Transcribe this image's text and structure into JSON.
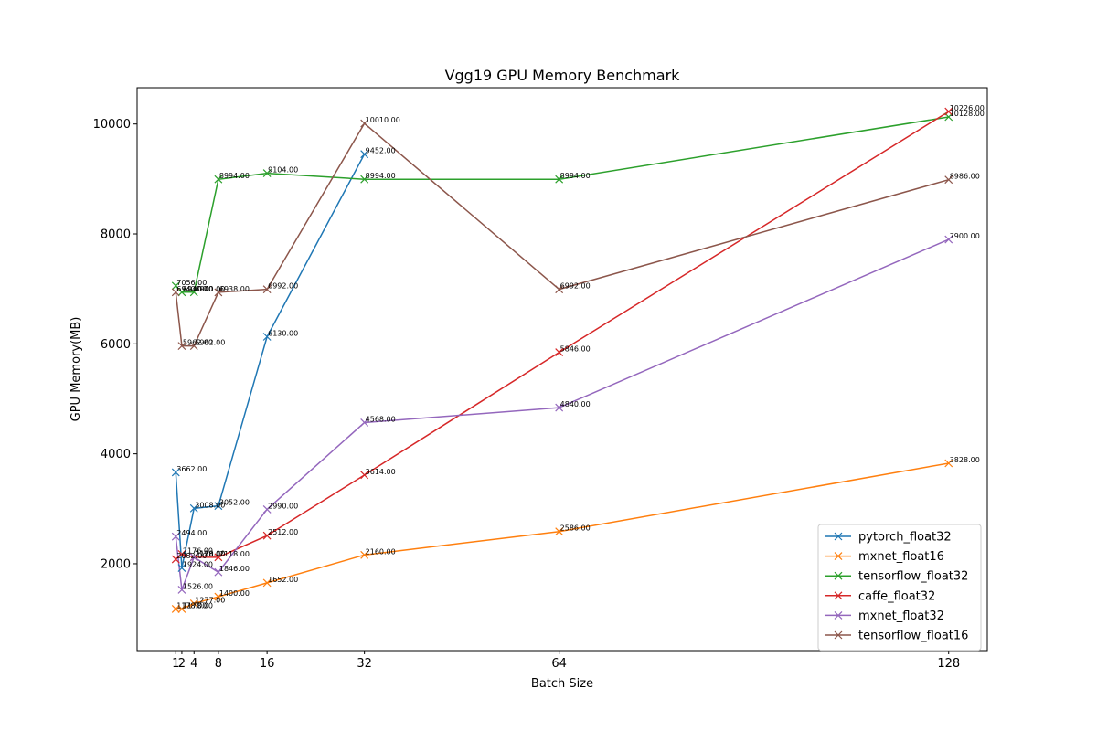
{
  "chart_data": {
    "type": "line",
    "title": "Vgg19 GPU Memory Benchmark",
    "xlabel": "Batch Size",
    "ylabel": "GPU Memory(MB)",
    "x": [
      1,
      2,
      4,
      8,
      16,
      32,
      64,
      128
    ],
    "x_ticks": [
      1,
      2,
      4,
      8,
      16,
      32,
      64,
      128
    ],
    "y_ticks": [
      2000,
      4000,
      6000,
      8000,
      10000
    ],
    "xlim": [
      -5.35,
      134.35
    ],
    "ylim": [
      420,
      10660
    ],
    "grid": false,
    "legend_position": "lower-right",
    "marker": "x",
    "series": [
      {
        "name": "pytorch_float32",
        "color": "#1f77b4",
        "values": [
          3662,
          1924,
          3008,
          3052,
          6130,
          9452,
          null,
          null
        ]
      },
      {
        "name": "mxnet_float16",
        "color": "#ff7f0e",
        "values": [
          1178,
          1178,
          1277,
          1400,
          1652,
          2160,
          2586,
          3828
        ]
      },
      {
        "name": "tensorflow_float32",
        "color": "#2ca02c",
        "values": [
          7056,
          6940,
          6940,
          8994,
          9104,
          8994,
          8994,
          10128
        ]
      },
      {
        "name": "caffe_float32",
        "color": "#d62728",
        "values": [
          2082,
          2176,
          2120,
          2118,
          2512,
          3614,
          5846,
          10226
        ]
      },
      {
        "name": "mxnet_float32",
        "color": "#9467bd",
        "values": [
          2494,
          1526,
          2118,
          1846,
          2990,
          4568,
          4840,
          7900
        ]
      },
      {
        "name": "tensorflow_float16",
        "color": "#8c564b",
        "values": [
          6940,
          5962,
          5962,
          6938,
          6992,
          10010,
          6992,
          8986
        ]
      }
    ],
    "data_labels": [
      {
        "series": 0,
        "x": 1,
        "y": 3662,
        "text": "3662.00"
      },
      {
        "series": 0,
        "x": 2,
        "y": 1924,
        "text": "1924.00"
      },
      {
        "series": 0,
        "x": 4,
        "y": 3008,
        "text": "3008.00"
      },
      {
        "series": 0,
        "x": 8,
        "y": 3052,
        "text": "3052.00"
      },
      {
        "series": 0,
        "x": 16,
        "y": 6130,
        "text": "6130.00"
      },
      {
        "series": 0,
        "x": 32,
        "y": 9452,
        "text": "9452.00"
      },
      {
        "series": 1,
        "x": 1,
        "y": 1178,
        "text": "1178.00"
      },
      {
        "series": 1,
        "x": 2,
        "y": 1178,
        "text": "1178.00"
      },
      {
        "series": 1,
        "x": 4,
        "y": 1277,
        "text": "1277.00"
      },
      {
        "series": 1,
        "x": 8,
        "y": 1400,
        "text": "1400.00"
      },
      {
        "series": 1,
        "x": 16,
        "y": 1652,
        "text": "1652.00"
      },
      {
        "series": 1,
        "x": 32,
        "y": 2160,
        "text": "2160.00"
      },
      {
        "series": 1,
        "x": 64,
        "y": 2586,
        "text": "2586.00"
      },
      {
        "series": 1,
        "x": 128,
        "y": 3828,
        "text": "3828.00"
      },
      {
        "series": 2,
        "x": 1,
        "y": 7056,
        "text": "7056.00"
      },
      {
        "series": 2,
        "x": 2,
        "y": 6940,
        "text": "6940.00"
      },
      {
        "series": 2,
        "x": 4,
        "y": 6940,
        "text": "6940.00"
      },
      {
        "series": 2,
        "x": 8,
        "y": 8994,
        "text": "8994.00"
      },
      {
        "series": 2,
        "x": 16,
        "y": 9104,
        "text": "9104.00"
      },
      {
        "series": 2,
        "x": 32,
        "y": 8994,
        "text": "8994.00"
      },
      {
        "series": 2,
        "x": 64,
        "y": 8994,
        "text": "8994.00"
      },
      {
        "series": 2,
        "x": 128,
        "y": 10128,
        "text": "10128.00"
      },
      {
        "series": 3,
        "x": 1,
        "y": 2082,
        "text": "2082.00"
      },
      {
        "series": 3,
        "x": 2,
        "y": 2176,
        "text": "2176.00"
      },
      {
        "series": 3,
        "x": 4,
        "y": 2120,
        "text": "2120.00"
      },
      {
        "series": 3,
        "x": 8,
        "y": 2118,
        "text": "2118.00"
      },
      {
        "series": 3,
        "x": 16,
        "y": 2512,
        "text": "2512.00"
      },
      {
        "series": 3,
        "x": 32,
        "y": 3614,
        "text": "3614.00"
      },
      {
        "series": 3,
        "x": 64,
        "y": 5846,
        "text": "5846.00"
      },
      {
        "series": 3,
        "x": 128,
        "y": 10226,
        "text": "10226.00"
      },
      {
        "series": 4,
        "x": 1,
        "y": 2494,
        "text": "2494.00"
      },
      {
        "series": 4,
        "x": 2,
        "y": 1526,
        "text": "1526.00"
      },
      {
        "series": 4,
        "x": 4,
        "y": 2118,
        "text": "2118.00"
      },
      {
        "series": 4,
        "x": 8,
        "y": 1846,
        "text": "1846.00"
      },
      {
        "series": 4,
        "x": 16,
        "y": 2990,
        "text": "2990.00"
      },
      {
        "series": 4,
        "x": 32,
        "y": 4568,
        "text": "4568.00"
      },
      {
        "series": 4,
        "x": 64,
        "y": 4840,
        "text": "4840.00"
      },
      {
        "series": 4,
        "x": 128,
        "y": 7900,
        "text": "7900.00"
      },
      {
        "series": 5,
        "x": 1,
        "y": 6940,
        "text": "6940.00"
      },
      {
        "series": 5,
        "x": 2,
        "y": 5962,
        "text": "5962.00"
      },
      {
        "series": 5,
        "x": 4,
        "y": 5962,
        "text": "5962.00"
      },
      {
        "series": 5,
        "x": 8,
        "y": 6938,
        "text": "6938.00"
      },
      {
        "series": 5,
        "x": 16,
        "y": 6992,
        "text": "6992.00"
      },
      {
        "series": 5,
        "x": 32,
        "y": 10010,
        "text": "10010.00"
      },
      {
        "series": 5,
        "x": 64,
        "y": 6992,
        "text": "6992.00"
      },
      {
        "series": 5,
        "x": 128,
        "y": 8986,
        "text": "8986.00"
      }
    ]
  }
}
